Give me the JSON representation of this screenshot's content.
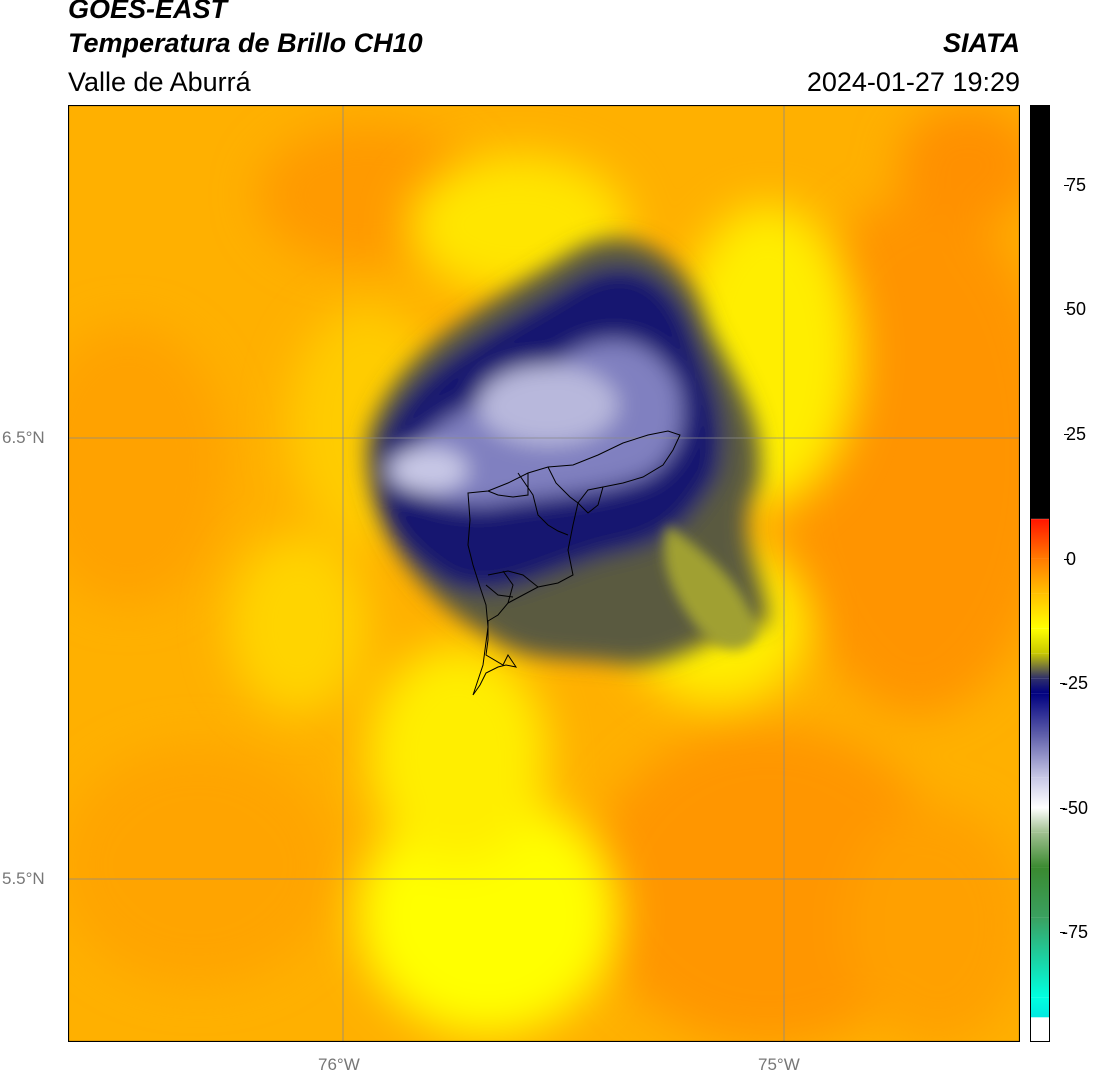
{
  "header": {
    "satellite": "GOES-EAST",
    "product": "Temperatura de Brillo CH10",
    "region": "Valle de Aburrá",
    "organization": "SIATA",
    "datetime": "2024-01-27 19:29"
  },
  "axes": {
    "lat_labels": [
      "6.5°N",
      "5.5°N"
    ],
    "lon_labels": [
      "76°W",
      "75°W"
    ]
  },
  "colorbar": {
    "ticks": [
      "75",
      "50",
      "25",
      "0",
      "-25",
      "-50",
      "-75"
    ],
    "stops": [
      {
        "v": 91,
        "c": "#000000"
      },
      {
        "v": 8,
        "c": "#000000"
      },
      {
        "v": 7.9,
        "c": "#ff1500"
      },
      {
        "v": 0,
        "c": "#ff7a00"
      },
      {
        "v": -7,
        "c": "#ffc000"
      },
      {
        "v": -14,
        "c": "#ffff00"
      },
      {
        "v": -19,
        "c": "#c8c800"
      },
      {
        "v": -24,
        "c": "#30306a"
      },
      {
        "v": -27,
        "c": "#000080"
      },
      {
        "v": -35,
        "c": "#5a5aa8"
      },
      {
        "v": -44,
        "c": "#c8c8e6"
      },
      {
        "v": -50,
        "c": "#ffffff"
      },
      {
        "v": -55,
        "c": "#a0c090"
      },
      {
        "v": -62,
        "c": "#3a8a30"
      },
      {
        "v": -72,
        "c": "#3aa060"
      },
      {
        "v": -88,
        "c": "#00ffe0"
      },
      {
        "v": -92,
        "c": "#00e8e0"
      },
      {
        "v": -92.1,
        "c": "#ffffff"
      },
      {
        "v": -97,
        "c": "#ffffff"
      }
    ]
  }
}
